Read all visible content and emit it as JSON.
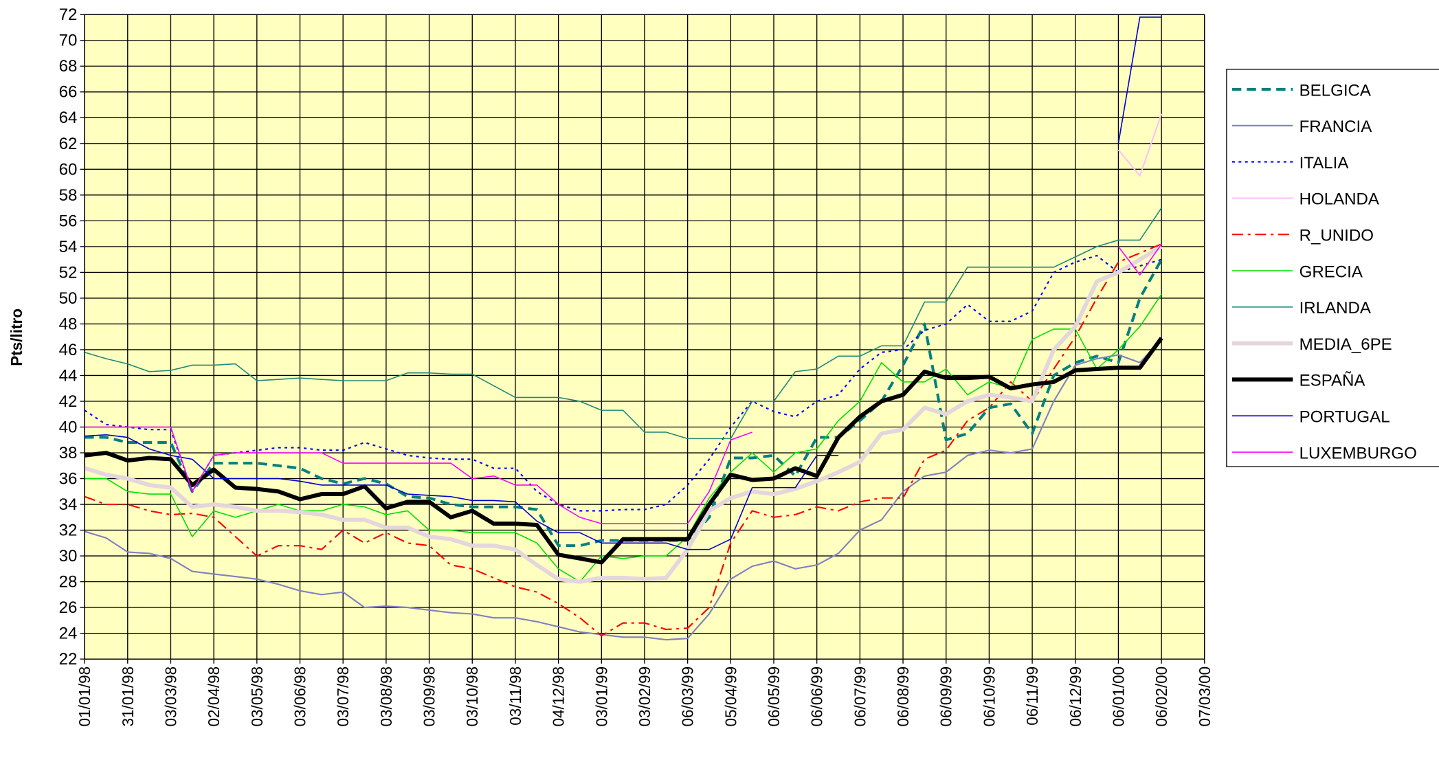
{
  "chart_data": {
    "type": "line",
    "ylabel": "Pts/litro",
    "x": [
      0,
      0.5,
      1,
      1.5,
      2,
      2.5,
      3,
      3.5,
      4,
      4.5,
      5,
      5.5,
      6,
      6.5,
      7,
      7.5,
      8,
      8.5,
      9,
      9.5,
      10,
      10.5,
      11,
      11.5,
      12,
      12.5,
      13,
      13.5,
      14,
      14.5,
      15,
      15.5,
      16,
      16.5,
      17,
      17.5,
      18,
      18.5,
      19,
      19.5,
      20,
      20.5,
      21,
      21.5,
      22,
      22.5,
      23,
      23.5,
      24,
      24.5,
      25
    ],
    "xlim": [
      0,
      26
    ],
    "xticks": [
      {
        "value": 0,
        "label": "01/01/98"
      },
      {
        "value": 1,
        "label": "31/01/98"
      },
      {
        "value": 2,
        "label": "03/03/98"
      },
      {
        "value": 3,
        "label": "02/04/98"
      },
      {
        "value": 4,
        "label": "03/05/98"
      },
      {
        "value": 5,
        "label": "03/06/98"
      },
      {
        "value": 6,
        "label": "03/07/98"
      },
      {
        "value": 7,
        "label": "03/08/98"
      },
      {
        "value": 8,
        "label": "03/09/98"
      },
      {
        "value": 9,
        "label": "03/10/98"
      },
      {
        "value": 10,
        "label": "03/11/98"
      },
      {
        "value": 11,
        "label": "04/12/98"
      },
      {
        "value": 12,
        "label": "03/01/99"
      },
      {
        "value": 13,
        "label": "03/02/99"
      },
      {
        "value": 14,
        "label": "06/03/99"
      },
      {
        "value": 15,
        "label": "05/04/99"
      },
      {
        "value": 16,
        "label": "06/05/99"
      },
      {
        "value": 17,
        "label": "06/06/99"
      },
      {
        "value": 18,
        "label": "06/07/99"
      },
      {
        "value": 19,
        "label": "06/08/99"
      },
      {
        "value": 20,
        "label": "06/09/99"
      },
      {
        "value": 21,
        "label": "06/10/99"
      },
      {
        "value": 22,
        "label": "06/11/99"
      },
      {
        "value": 23,
        "label": "06/12/99"
      },
      {
        "value": 24,
        "label": "06/01/00"
      },
      {
        "value": 25,
        "label": "06/02/00"
      },
      {
        "value": 26,
        "label": "07/03/00"
      }
    ],
    "ylim": [
      22,
      72
    ],
    "yticks": [
      22,
      24,
      26,
      28,
      30,
      32,
      34,
      36,
      38,
      40,
      42,
      44,
      46,
      48,
      50,
      52,
      54,
      56,
      58,
      60,
      62,
      64,
      66,
      68,
      70,
      72
    ],
    "grid": true,
    "legend": "right",
    "series": [
      {
        "name": "BELGICA",
        "color": "#00807f",
        "style": "dashed",
        "weight": "bold",
        "values": [
          39.2,
          39.2,
          38.8,
          38.8,
          38.8,
          35.0,
          37.2,
          37.2,
          37.2,
          37.0,
          36.8,
          36.0,
          35.6,
          36.0,
          35.6,
          34.6,
          34.5,
          34.0,
          33.8,
          33.8,
          33.8,
          33.6,
          30.8,
          30.8,
          31.2,
          31.2,
          31.2,
          31.2,
          31.2,
          33.0,
          37.6,
          37.6,
          37.8,
          36.2,
          39.2,
          39.2,
          40.5,
          42.0,
          44.8,
          48.0,
          39.0,
          39.5,
          41.5,
          41.8,
          39.5,
          44.0,
          45.0,
          45.5,
          45.0,
          50.0,
          53.0
        ]
      },
      {
        "name": "FRANCIA",
        "color": "#8080c0",
        "style": "solid",
        "weight": "medium",
        "values": [
          31.9,
          31.4,
          30.3,
          30.2,
          29.8,
          28.8,
          28.6,
          28.4,
          28.2,
          27.8,
          27.3,
          27.0,
          27.2,
          26.0,
          26.1,
          26.0,
          25.8,
          25.6,
          25.5,
          25.2,
          25.2,
          24.9,
          24.5,
          24.1,
          23.9,
          23.7,
          23.7,
          23.5,
          23.6,
          25.5,
          28.2,
          29.2,
          29.6,
          29.0,
          29.3,
          30.2,
          32.0,
          32.8,
          35.0,
          36.2,
          36.5,
          37.8,
          38.2,
          38.0,
          38.3,
          42.0,
          44.8,
          45.3,
          45.6,
          45.0,
          46.8
        ]
      },
      {
        "name": "ITALIA",
        "color": "#0000ff",
        "style": "dotted",
        "weight": "medium",
        "values": [
          41.3,
          40.2,
          40.0,
          39.8,
          39.8,
          35.0,
          37.8,
          38.0,
          38.2,
          38.4,
          38.4,
          38.2,
          38.2,
          38.8,
          38.3,
          37.8,
          37.6,
          37.5,
          37.5,
          36.8,
          36.8,
          35.0,
          34.0,
          33.5,
          33.5,
          33.6,
          33.6,
          34.0,
          35.5,
          37.5,
          40.0,
          42.0,
          41.2,
          40.8,
          42.0,
          42.5,
          44.5,
          45.8,
          46.0,
          47.5,
          48.0,
          49.5,
          48.2,
          48.2,
          49.0,
          52.0,
          52.8,
          53.3,
          52.0,
          52.5,
          53.0
        ]
      },
      {
        "name": "HOLANDA",
        "color": "#ffc0ff",
        "style": "solid",
        "weight": "medium",
        "values": [
          null,
          null,
          null,
          null,
          null,
          null,
          null,
          null,
          null,
          null,
          null,
          null,
          null,
          null,
          null,
          null,
          null,
          null,
          null,
          null,
          null,
          null,
          null,
          null,
          null,
          null,
          null,
          null,
          null,
          null,
          null,
          null,
          null,
          null,
          null,
          null,
          null,
          null,
          null,
          null,
          null,
          null,
          null,
          null,
          null,
          null,
          null,
          null,
          61.5,
          59.5,
          64.3
        ]
      },
      {
        "name": "R_UNIDO",
        "color": "#ff0000",
        "style": "dashdot",
        "weight": "medium",
        "values": [
          34.6,
          34.0,
          34.0,
          33.5,
          33.2,
          33.3,
          33.0,
          31.5,
          30.0,
          30.8,
          30.8,
          30.5,
          32.0,
          31.0,
          31.8,
          31.0,
          30.8,
          29.3,
          29.0,
          28.3,
          27.6,
          27.2,
          26.3,
          25.2,
          23.8,
          24.8,
          24.8,
          24.3,
          24.4,
          26.0,
          31.0,
          33.5,
          33.0,
          33.2,
          33.8,
          33.5,
          34.2,
          34.5,
          34.5,
          37.5,
          38.2,
          40.5,
          41.5,
          43.5,
          42.0,
          44.5,
          47.0,
          50.0,
          52.8,
          53.5,
          54.2
        ]
      },
      {
        "name": "GRECIA",
        "color": "#00e000",
        "style": "solid",
        "weight": "thin",
        "values": [
          36.0,
          36.0,
          35.0,
          34.8,
          34.8,
          31.5,
          33.5,
          33.0,
          33.5,
          34.0,
          33.5,
          33.5,
          34.0,
          33.8,
          33.2,
          33.5,
          32.0,
          32.0,
          31.8,
          31.8,
          31.8,
          31.0,
          29.0,
          28.0,
          30.0,
          29.8,
          30.0,
          30.0,
          31.5,
          34.5,
          36.5,
          38.0,
          36.5,
          38.0,
          38.3,
          40.5,
          42.0,
          45.0,
          43.5,
          43.5,
          44.5,
          42.5,
          43.5,
          43.0,
          46.8,
          47.6,
          47.6,
          44.5,
          46.0,
          47.8,
          50.3
        ]
      },
      {
        "name": "IRLANDA",
        "color": "#208878",
        "style": "solid",
        "weight": "thin",
        "values": [
          45.8,
          45.3,
          44.9,
          44.3,
          44.4,
          44.8,
          44.8,
          44.9,
          43.6,
          43.7,
          43.8,
          43.7,
          43.6,
          43.6,
          43.6,
          44.2,
          44.2,
          44.1,
          44.1,
          43.2,
          42.3,
          42.3,
          42.3,
          42.0,
          41.3,
          41.3,
          39.6,
          39.6,
          39.1,
          39.1,
          39.1,
          42.0,
          42.0,
          44.3,
          44.5,
          45.5,
          45.5,
          46.3,
          46.3,
          49.7,
          49.7,
          52.4,
          52.4,
          52.4,
          52.4,
          52.4,
          53.2,
          54.0,
          54.5,
          54.5,
          57.0
        ]
      },
      {
        "name": "MEDIA_6PE",
        "color": "#e4d6dc",
        "style": "solid",
        "weight": "heavy",
        "values": [
          36.8,
          36.3,
          36.0,
          35.5,
          35.3,
          33.8,
          34.0,
          33.8,
          33.5,
          33.5,
          33.4,
          33.2,
          32.8,
          32.8,
          32.2,
          32.2,
          31.5,
          31.3,
          30.8,
          30.8,
          30.5,
          29.3,
          28.2,
          28.0,
          28.3,
          28.3,
          28.2,
          28.3,
          30.5,
          33.5,
          34.5,
          35.0,
          34.8,
          35.2,
          35.8,
          36.5,
          37.3,
          39.5,
          39.8,
          41.5,
          41.0,
          42.0,
          42.5,
          42.3,
          42.0,
          46.0,
          47.8,
          51.3,
          52.0,
          53.0,
          54.0
        ]
      },
      {
        "name": "ESPAÑA",
        "color": "#000000",
        "style": "solid",
        "weight": "heavy",
        "values": [
          37.8,
          38.0,
          37.4,
          37.6,
          37.5,
          35.5,
          36.7,
          35.3,
          35.2,
          35.0,
          34.4,
          34.8,
          34.8,
          35.4,
          33.7,
          34.2,
          34.2,
          33.0,
          33.5,
          32.5,
          32.5,
          32.4,
          30.1,
          29.8,
          29.5,
          31.3,
          31.3,
          31.3,
          31.3,
          34.0,
          36.3,
          35.9,
          36.0,
          36.8,
          36.2,
          39.2,
          40.8,
          42.0,
          42.5,
          44.3,
          43.8,
          43.8,
          43.9,
          43.0,
          43.3,
          43.5,
          44.4,
          44.5,
          44.6,
          44.6,
          46.9
        ]
      },
      {
        "name": "PORTUGAL",
        "color": "#0000d0",
        "style": "solid",
        "weight": "thin",
        "values": [
          39.3,
          39.4,
          39.2,
          38.3,
          37.8,
          37.5,
          36.0,
          36.0,
          36.0,
          36.0,
          35.8,
          35.5,
          35.5,
          35.5,
          35.5,
          34.8,
          34.7,
          34.6,
          34.3,
          34.3,
          34.2,
          32.7,
          31.8,
          31.8,
          31.0,
          31.0,
          31.0,
          31.0,
          30.5,
          30.5,
          31.3,
          35.3,
          35.3,
          35.3,
          37.8,
          37.8,
          null,
          null,
          null,
          null,
          null,
          null,
          null,
          null,
          null,
          null,
          null,
          null,
          62.0,
          71.8,
          71.8
        ]
      },
      {
        "name": "LUXEMBURGO",
        "color": "#ff00ff",
        "style": "solid",
        "weight": "thin",
        "values": [
          40.0,
          40.0,
          40.0,
          40.0,
          40.0,
          35.0,
          37.8,
          38.0,
          38.0,
          38.0,
          38.0,
          38.0,
          37.2,
          37.2,
          37.2,
          37.2,
          37.2,
          37.2,
          36.0,
          36.2,
          35.5,
          35.5,
          34.0,
          33.0,
          32.5,
          32.5,
          32.5,
          32.5,
          32.5,
          35.0,
          39.0,
          39.6,
          null,
          null,
          null,
          null,
          null,
          null,
          null,
          null,
          null,
          null,
          null,
          null,
          null,
          null,
          null,
          null,
          54.0,
          51.8,
          54.2
        ]
      }
    ]
  }
}
